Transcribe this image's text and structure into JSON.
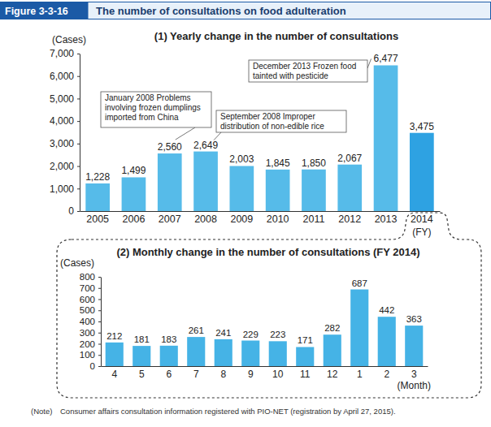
{
  "figure": {
    "label": "Figure 3-3-16",
    "title": "The number of consultations on food adulteration",
    "note_label": "(Note)",
    "note": "Consumer affairs consultation information registered with PIO-NET (registration by April 27, 2015)."
  },
  "chart_data": [
    {
      "type": "bar",
      "title": "(1) Yearly change in the number of consultations",
      "y_label": "(Cases)",
      "x_label": "(FY)",
      "categories": [
        "2005",
        "2006",
        "2007",
        "2008",
        "2009",
        "2010",
        "2011",
        "2012",
        "2013",
        "2014"
      ],
      "values": [
        1228,
        1499,
        2560,
        2649,
        2003,
        1845,
        1850,
        2067,
        6477,
        3475
      ],
      "value_labels": [
        "1,228",
        "1,499",
        "2,560",
        "2,649",
        "2,003",
        "1,845",
        "1,850",
        "2,067",
        "6,477",
        "3,475"
      ],
      "colors": [
        "#56bbe9",
        "#56bbe9",
        "#56bbe9",
        "#56bbe9",
        "#56bbe9",
        "#56bbe9",
        "#56bbe9",
        "#56bbe9",
        "#56bbe9",
        "#2ea2e2"
      ],
      "ylim": [
        0,
        7000
      ],
      "yticks": [
        0,
        {
          "value": 1000,
          "label": "1,000"
        },
        {
          "value": 2000,
          "label": "2,000"
        },
        {
          "value": 3000,
          "label": "3,000"
        },
        {
          "value": 4000,
          "label": "4,000"
        },
        {
          "value": 5000,
          "label": "5,000"
        },
        {
          "value": 6000,
          "label": "6,000"
        },
        {
          "value": 7000,
          "label": "7,000"
        }
      ],
      "grid": false,
      "data_labels": true,
      "annotations": [
        {
          "lines": [
            "January 2008 Problems",
            "involving frozen dumplings",
            "imported from China"
          ],
          "at": "2007"
        },
        {
          "lines": [
            "September 2008 Improper",
            "distribution of non-edible rice"
          ],
          "at": "2008"
        },
        {
          "lines": [
            "December 2013 Frozen food",
            "tainted with pesticide"
          ],
          "at": "2013"
        }
      ]
    },
    {
      "type": "bar",
      "title": "(2) Monthly change in the number of consultations (FY 2014)",
      "y_label": "(Cases)",
      "x_label": "(Month)",
      "categories": [
        "4",
        "5",
        "6",
        "7",
        "8",
        "9",
        "10",
        "11",
        "12",
        "1",
        "2",
        "3"
      ],
      "values": [
        212,
        181,
        183,
        261,
        241,
        229,
        223,
        171,
        282,
        687,
        442,
        363
      ],
      "color": "#45b3e6",
      "ylim": [
        0,
        800
      ],
      "yticks": [
        0,
        100,
        200,
        300,
        400,
        500,
        600,
        700,
        800
      ],
      "grid": false,
      "data_labels": true
    }
  ]
}
